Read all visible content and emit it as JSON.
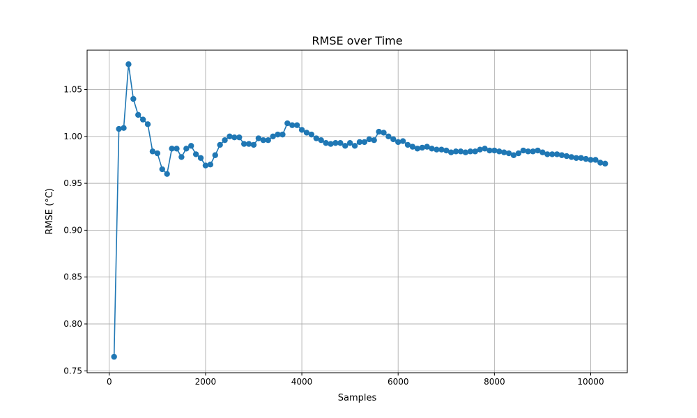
{
  "chart_data": {
    "type": "line",
    "title": "RMSE over Time",
    "xlabel": "Samples",
    "ylabel": "RMSE (°C)",
    "xlim": [
      -460,
      10760
    ],
    "ylim": [
      0.748,
      1.092
    ],
    "xticks": [
      0,
      2000,
      4000,
      6000,
      8000,
      10000
    ],
    "yticks": [
      0.75,
      0.8,
      0.85,
      0.9,
      0.95,
      1.0,
      1.05
    ],
    "xtick_labels": [
      "0",
      "2000",
      "4000",
      "6000",
      "8000",
      "10000"
    ],
    "ytick_labels": [
      "0.75",
      "0.80",
      "0.85",
      "0.90",
      "0.95",
      "1.00",
      "1.05"
    ],
    "grid": true,
    "marker": "circle",
    "series": [
      {
        "color": "#1f77b4",
        "x": [
          100,
          200,
          300,
          400,
          500,
          600,
          700,
          800,
          900,
          1000,
          1100,
          1200,
          1300,
          1400,
          1500,
          1600,
          1700,
          1800,
          1900,
          2000,
          2100,
          2200,
          2300,
          2400,
          2500,
          2600,
          2700,
          2800,
          2900,
          3000,
          3100,
          3200,
          3300,
          3400,
          3500,
          3600,
          3700,
          3800,
          3900,
          4000,
          4100,
          4200,
          4300,
          4400,
          4500,
          4600,
          4700,
          4800,
          4900,
          5000,
          5100,
          5200,
          5300,
          5400,
          5500,
          5600,
          5700,
          5800,
          5900,
          6000,
          6100,
          6200,
          6300,
          6400,
          6500,
          6600,
          6700,
          6800,
          6900,
          7000,
          7100,
          7200,
          7300,
          7400,
          7500,
          7600,
          7700,
          7800,
          7900,
          8000,
          8100,
          8200,
          8300,
          8400,
          8500,
          8600,
          8700,
          8800,
          8900,
          9000,
          9100,
          9200,
          9300,
          9400,
          9500,
          9600,
          9700,
          9800,
          9900,
          10000,
          10100,
          10200,
          10300
        ],
        "y": [
          0.765,
          1.008,
          1.009,
          1.077,
          1.04,
          1.023,
          1.018,
          1.013,
          0.984,
          0.982,
          0.965,
          0.96,
          0.987,
          0.987,
          0.978,
          0.987,
          0.99,
          0.981,
          0.977,
          0.969,
          0.97,
          0.98,
          0.991,
          0.996,
          1.0,
          0.999,
          0.999,
          0.992,
          0.992,
          0.991,
          0.998,
          0.996,
          0.996,
          1.0,
          1.002,
          1.002,
          1.014,
          1.012,
          1.012,
          1.007,
          1.004,
          1.002,
          0.998,
          0.996,
          0.993,
          0.992,
          0.993,
          0.993,
          0.99,
          0.993,
          0.99,
          0.994,
          0.994,
          0.997,
          0.996,
          1.005,
          1.004,
          1.0,
          0.997,
          0.994,
          0.995,
          0.991,
          0.989,
          0.987,
          0.988,
          0.989,
          0.987,
          0.986,
          0.986,
          0.985,
          0.983,
          0.984,
          0.984,
          0.983,
          0.984,
          0.984,
          0.986,
          0.987,
          0.985,
          0.985,
          0.984,
          0.983,
          0.982,
          0.98,
          0.982,
          0.985,
          0.984,
          0.984,
          0.985,
          0.983,
          0.981,
          0.981,
          0.981,
          0.98,
          0.979,
          0.978,
          0.977,
          0.977,
          0.976,
          0.975,
          0.975,
          0.972,
          0.971
        ]
      }
    ]
  }
}
